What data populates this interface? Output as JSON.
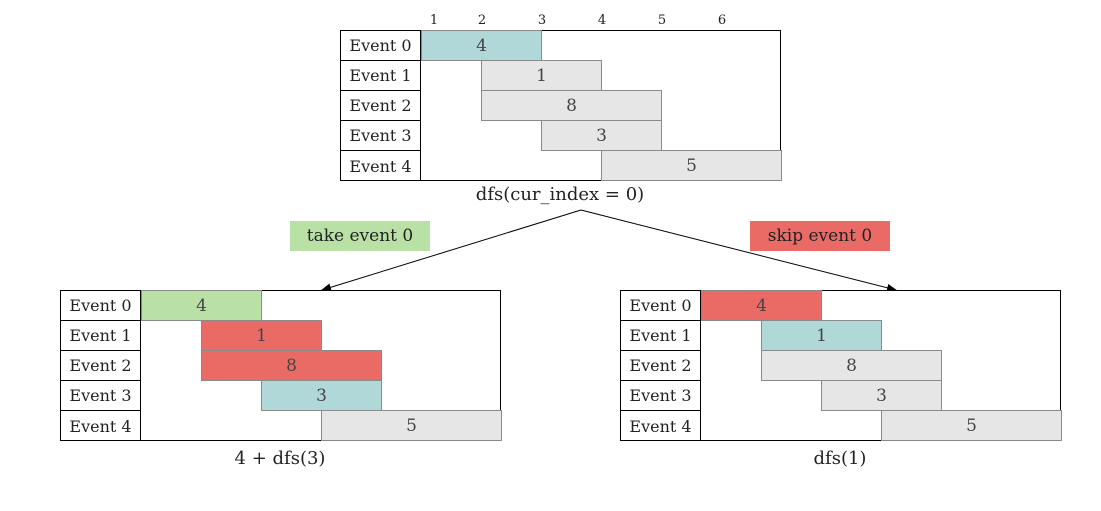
{
  "colors": {
    "teal": "#b1d8d8",
    "gray": "#e6e6e6",
    "red": "#ea6b66",
    "green": "#b9e0a5"
  },
  "ticks": [
    "1",
    "2",
    "3",
    "4",
    "5",
    "6"
  ],
  "edges": {
    "take_label": "take event 0",
    "skip_label": "skip event 0"
  },
  "panels": [
    {
      "id": "root",
      "caption": "dfs(cur_index = 0)",
      "rows": [
        {
          "label": "Event 0",
          "value": "4",
          "start": 0,
          "end": 2,
          "color": "teal"
        },
        {
          "label": "Event 1",
          "value": "1",
          "start": 1,
          "end": 3,
          "color": "gray"
        },
        {
          "label": "Event 2",
          "value": "8",
          "start": 1,
          "end": 4,
          "color": "gray"
        },
        {
          "label": "Event 3",
          "value": "3",
          "start": 2,
          "end": 4,
          "color": "gray"
        },
        {
          "label": "Event 4",
          "value": "5",
          "start": 3,
          "end": 6,
          "color": "gray"
        }
      ]
    },
    {
      "id": "take",
      "caption": "4 + dfs(3)",
      "rows": [
        {
          "label": "Event 0",
          "value": "4",
          "start": 0,
          "end": 2,
          "color": "green"
        },
        {
          "label": "Event 1",
          "value": "1",
          "start": 1,
          "end": 3,
          "color": "red"
        },
        {
          "label": "Event 2",
          "value": "8",
          "start": 1,
          "end": 4,
          "color": "red"
        },
        {
          "label": "Event 3",
          "value": "3",
          "start": 2,
          "end": 4,
          "color": "teal"
        },
        {
          "label": "Event 4",
          "value": "5",
          "start": 3,
          "end": 6,
          "color": "gray"
        }
      ]
    },
    {
      "id": "skip",
      "caption": "dfs(1)",
      "rows": [
        {
          "label": "Event 0",
          "value": "4",
          "start": 0,
          "end": 2,
          "color": "red"
        },
        {
          "label": "Event 1",
          "value": "1",
          "start": 1,
          "end": 3,
          "color": "teal"
        },
        {
          "label": "Event 2",
          "value": "8",
          "start": 1,
          "end": 4,
          "color": "gray"
        },
        {
          "label": "Event 3",
          "value": "3",
          "start": 2,
          "end": 4,
          "color": "gray"
        },
        {
          "label": "Event 4",
          "value": "5",
          "start": 3,
          "end": 6,
          "color": "gray"
        }
      ]
    }
  ]
}
